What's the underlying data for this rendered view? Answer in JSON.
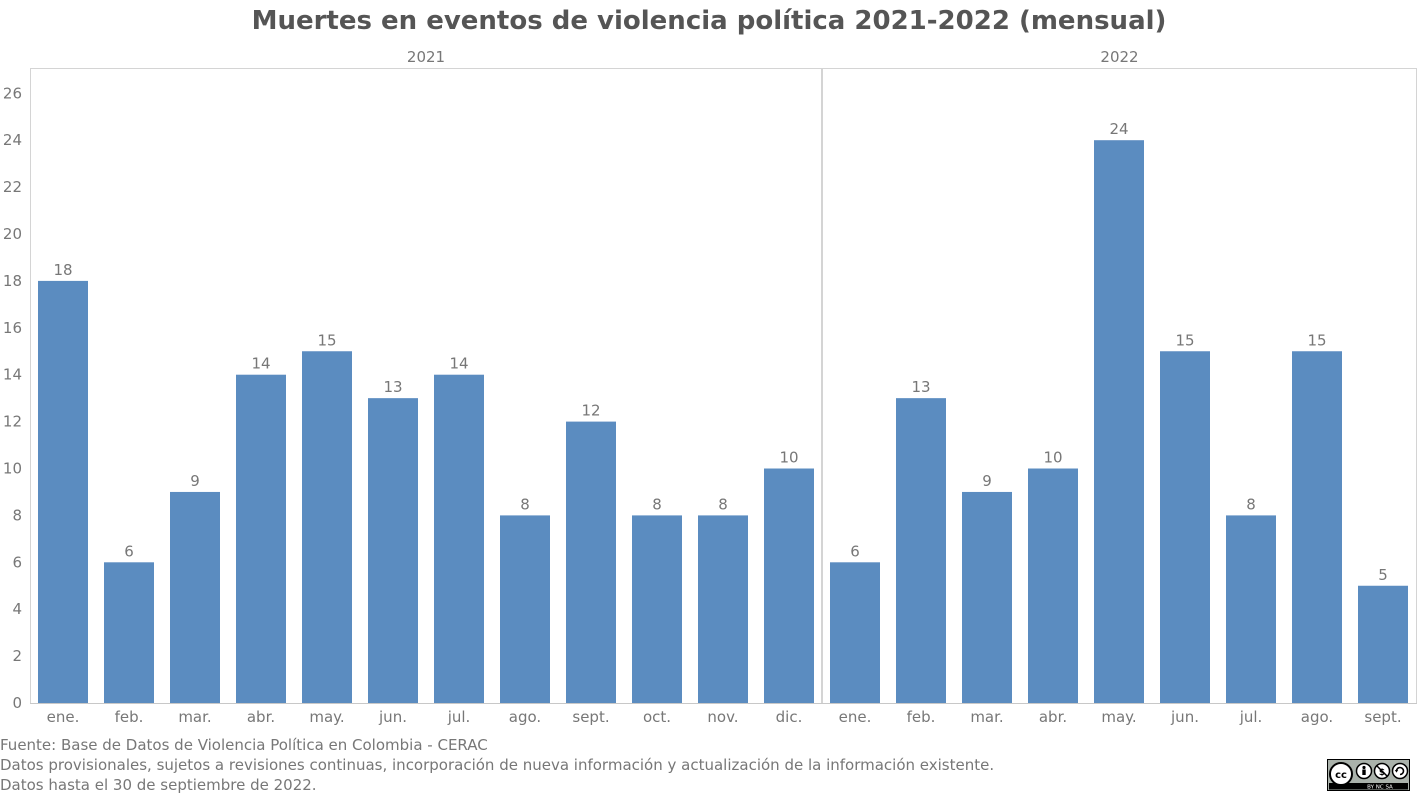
{
  "title": "Muertes en eventos de violencia política 2021-2022 (mensual)",
  "footer": {
    "source": "Fuente: Base de Datos de Violencia Política en Colombia - CERAC",
    "note": "Datos provisionales, sujetos a revisiones continuas, incorporación de nueva información y actualización de la información existente.",
    "cutoff": "Datos hasta el 30 de septiembre de 2022."
  },
  "license_badge": {
    "icon": "cc-by-nc-sa-icon",
    "text": "BY NC SA"
  },
  "chart_data": {
    "type": "bar",
    "title": "Muertes en eventos de violencia política 2021-2022 (mensual)",
    "xlabel": "",
    "ylabel": "",
    "ylim": [
      0,
      27
    ],
    "yticks": [
      0,
      2,
      4,
      6,
      8,
      10,
      12,
      14,
      16,
      18,
      20,
      22,
      24,
      26
    ],
    "grid": false,
    "bar_color": "#5b8cc0",
    "panels": [
      {
        "name": "2021",
        "categories": [
          "ene.",
          "feb.",
          "mar.",
          "abr.",
          "may.",
          "jun.",
          "jul.",
          "ago.",
          "sept.",
          "oct.",
          "nov.",
          "dic."
        ],
        "values": [
          18,
          6,
          9,
          14,
          15,
          13,
          14,
          8,
          12,
          8,
          8,
          10
        ]
      },
      {
        "name": "2022",
        "categories": [
          "ene.",
          "feb.",
          "mar.",
          "abr.",
          "may.",
          "jun.",
          "jul.",
          "ago.",
          "sept."
        ],
        "values": [
          6,
          13,
          9,
          10,
          24,
          15,
          8,
          15,
          5
        ]
      }
    ]
  }
}
